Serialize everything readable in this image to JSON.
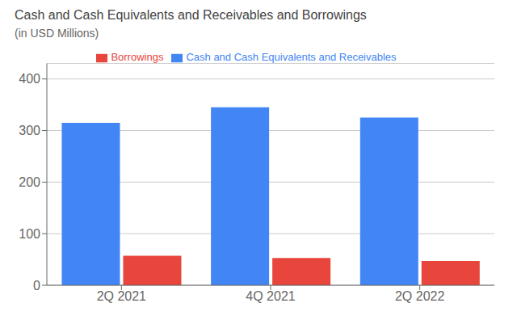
{
  "chart_data": {
    "type": "bar",
    "title": "Cash and Cash Equivalents and Receivables and Borrowings",
    "subtitle": "(in USD Millions)",
    "categories": [
      "2Q 2021",
      "4Q 2021",
      "2Q 2022"
    ],
    "series": [
      {
        "name": "Cash and Cash Equivalents and Receivables",
        "values": [
          315,
          345,
          325
        ],
        "color": "#4285F4"
      },
      {
        "name": "Borrowings",
        "values": [
          57,
          53,
          47
        ],
        "color": "#E8453C"
      }
    ],
    "ylim": [
      0,
      430
    ],
    "yticks": [
      0,
      100,
      200,
      300,
      400
    ],
    "grid": true,
    "legend": "top"
  }
}
